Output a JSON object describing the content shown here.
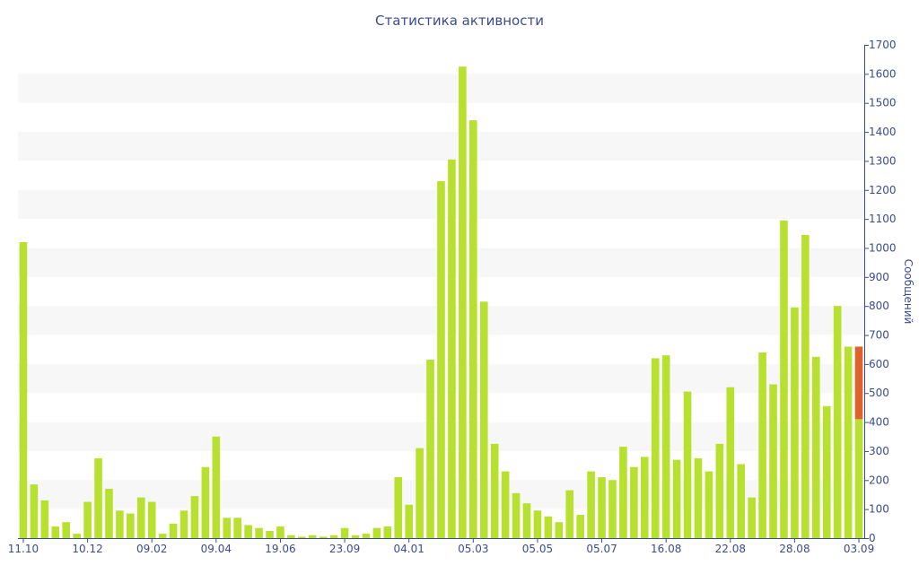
{
  "chart_data": {
    "type": "bar",
    "title": "Статистика активности",
    "ylabel": "Сообщений",
    "ylim": [
      0,
      1700
    ],
    "yticks": [
      0,
      100,
      200,
      300,
      400,
      500,
      600,
      700,
      800,
      900,
      1000,
      1100,
      1200,
      1300,
      1400,
      1500,
      1600,
      1700
    ],
    "x_tick_labels": [
      {
        "index": 0,
        "label": "11.10"
      },
      {
        "index": 6,
        "label": "10.12"
      },
      {
        "index": 12,
        "label": "09.02"
      },
      {
        "index": 18,
        "label": "09.04"
      },
      {
        "index": 24,
        "label": "19.06"
      },
      {
        "index": 30,
        "label": "23.09"
      },
      {
        "index": 36,
        "label": "04.01"
      },
      {
        "index": 42,
        "label": "05.03"
      },
      {
        "index": 48,
        "label": "05.05"
      },
      {
        "index": 54,
        "label": "05.07"
      },
      {
        "index": 60,
        "label": "16.08"
      },
      {
        "index": 66,
        "label": "22.08"
      },
      {
        "index": 72,
        "label": "28.08"
      },
      {
        "index": 78,
        "label": "03.09"
      }
    ],
    "grid": true,
    "colors": {
      "bar": "#b8e02e",
      "highlight": "#e0622a",
      "text": "#3a4c8f",
      "band": "#f7f7f7"
    },
    "values": [
      1020,
      185,
      130,
      40,
      55,
      15,
      125,
      275,
      170,
      95,
      85,
      140,
      125,
      15,
      50,
      95,
      145,
      245,
      350,
      70,
      70,
      45,
      35,
      25,
      40,
      10,
      5,
      10,
      5,
      10,
      35,
      10,
      15,
      35,
      40,
      210,
      115,
      310,
      615,
      1230,
      1305,
      1625,
      1440,
      815,
      325,
      230,
      155,
      120,
      95,
      75,
      55,
      165,
      80,
      230,
      210,
      200,
      315,
      245,
      280,
      620,
      630,
      270,
      505,
      275,
      230,
      325,
      520,
      255,
      140,
      640,
      530,
      1095,
      795,
      1045,
      625,
      455,
      800,
      660,
      410
    ],
    "highlight": {
      "index": 78,
      "extra": 250
    }
  }
}
